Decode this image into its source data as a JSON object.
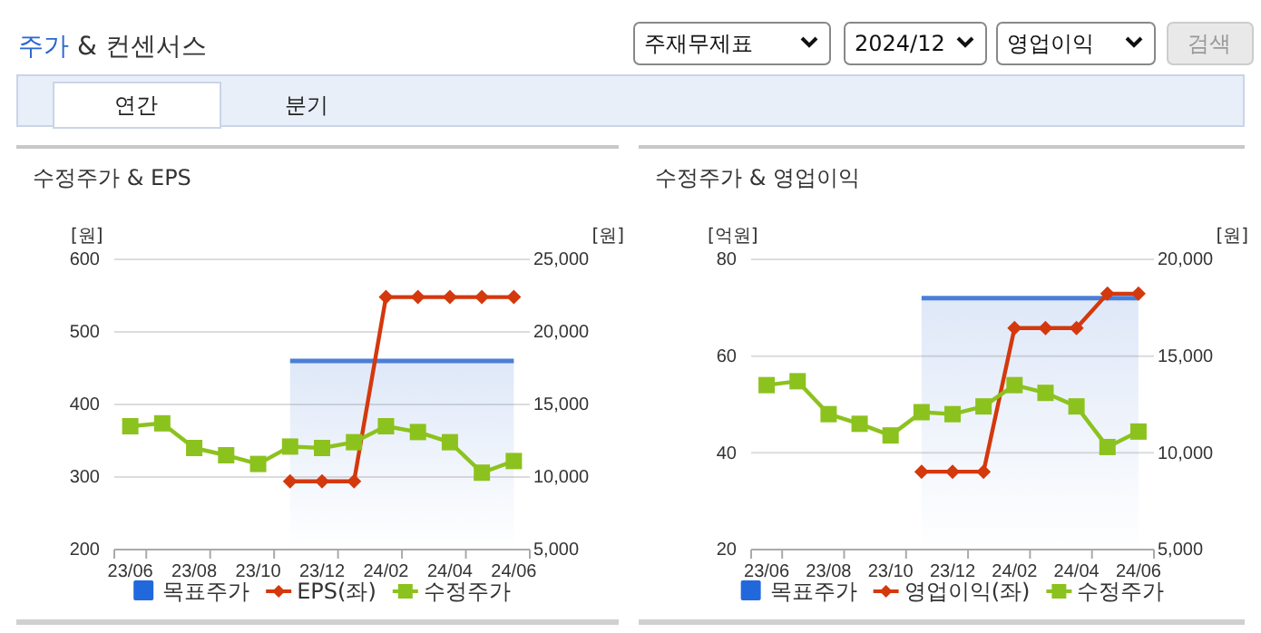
{
  "chart_data": [
    {
      "type": "line",
      "title": "수정주가 & EPS",
      "ylabel": "[원]",
      "y2label": "[원]",
      "annotations": [
        "주가 & 컨센서스",
        "주재무제표",
        "2024/12",
        "영업이익",
        "검색",
        "연간",
        "분기"
      ],
      "categories": [
        "23/06",
        null,
        "23/08",
        null,
        "23/10",
        null,
        "23/12",
        null,
        "24/02",
        null,
        "24/04",
        null,
        "24/06"
      ],
      "series": [
        {
          "name": "목표주가",
          "type": "area",
          "axis": "y2",
          "color": "#4a7fd8",
          "marker": "none",
          "values": [
            null,
            null,
            null,
            null,
            null,
            18000,
            18000,
            18000,
            18000,
            18000,
            18000,
            18000,
            18000
          ]
        },
        {
          "name": "EPS(좌)",
          "type": "line",
          "color": "#d4380d",
          "marker": "diamond",
          "values": [
            null,
            null,
            null,
            null,
            null,
            294,
            294,
            294,
            548,
            548,
            548,
            548,
            548
          ]
        },
        {
          "name": "수정주가",
          "type": "line",
          "axis": "y2",
          "color": "#8cc21e",
          "marker": "square",
          "values": [
            13500,
            13700,
            12000,
            11500,
            10900,
            12100,
            12000,
            12400,
            13500,
            13100,
            12400,
            10300,
            11100
          ]
        }
      ],
      "ylim": [
        200,
        600
      ],
      "yticks": [
        200,
        300,
        400,
        500,
        600
      ],
      "y2lim": [
        5000,
        25000
      ],
      "y2ticks": [
        {
          "value": 5000,
          "label": "5,000"
        },
        {
          "value": 10000,
          "label": "10,000"
        },
        {
          "value": 15000,
          "label": "15,000"
        },
        {
          "value": 20000,
          "label": "20,000"
        },
        {
          "value": 25000,
          "label": "25,000"
        }
      ],
      "grid": "y",
      "legend": "bottom"
    },
    {
      "type": "line",
      "title": "수정주가 & 영업이익",
      "ylabel": "[억원]",
      "y2label": "[원]",
      "categories": [
        "23/06",
        null,
        "23/08",
        null,
        "23/10",
        null,
        "23/12",
        null,
        "24/02",
        null,
        "24/04",
        null,
        "24/06"
      ],
      "series": [
        {
          "name": "목표주가",
          "type": "area",
          "axis": "y2",
          "color": "#4a7fd8",
          "marker": "none",
          "values": [
            null,
            null,
            null,
            null,
            null,
            18000,
            18000,
            18000,
            18000,
            18000,
            18000,
            18000,
            18000
          ]
        },
        {
          "name": "영업이익(좌)",
          "type": "line",
          "color": "#d4380d",
          "marker": "diamond",
          "values": [
            null,
            null,
            null,
            null,
            null,
            36.1,
            36.1,
            36.1,
            65.8,
            65.8,
            65.8,
            72.9,
            72.9
          ]
        },
        {
          "name": "수정주가",
          "type": "line",
          "axis": "y2",
          "color": "#8cc21e",
          "marker": "square",
          "values": [
            13500,
            13700,
            12000,
            11500,
            10900,
            12100,
            12000,
            12400,
            13500,
            13100,
            12400,
            10300,
            11100
          ]
        }
      ],
      "ylim": [
        20,
        80
      ],
      "yticks": [
        20,
        40,
        60,
        80
      ],
      "y2lim": [
        5000,
        20000
      ],
      "y2ticks": [
        {
          "value": 5000,
          "label": "5,000"
        },
        {
          "value": 10000,
          "label": "10,000"
        },
        {
          "value": 15000,
          "label": "15,000"
        },
        {
          "value": 20000,
          "label": "20,000"
        }
      ],
      "grid": "y",
      "legend": "bottom"
    }
  ]
}
